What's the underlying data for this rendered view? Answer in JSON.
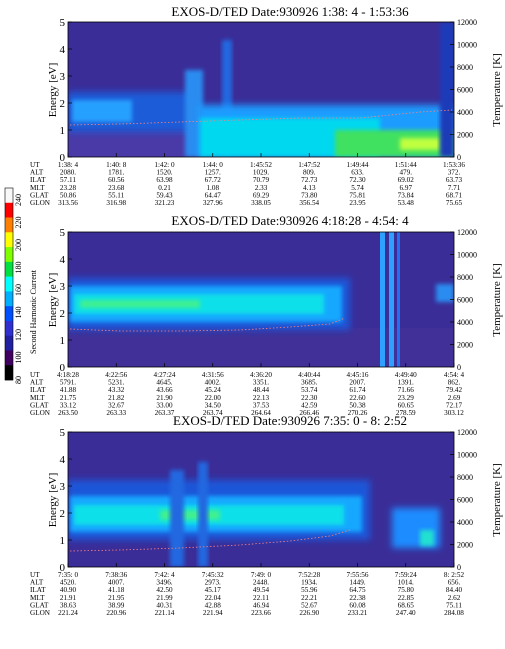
{
  "colorbar": {
    "label": "Second Harmonic Current",
    "ticks": [
      "240",
      "220",
      "200",
      "180",
      "160",
      "140",
      "120",
      "100",
      "80"
    ],
    "colors": [
      "#f8f8f8",
      "#ff0000",
      "#ff8000",
      "#ffff00",
      "#80ff00",
      "#00e040",
      "#00ffff",
      "#00b0ff",
      "#0050ff",
      "#3030d0",
      "#2020a0",
      "#400060",
      "#000000"
    ]
  },
  "chart_data": [
    {
      "type": "heatmap",
      "title": "EXOS-D/TED   Date:930926   1:38: 4 - 1:53:36",
      "ylabel": "Energy [eV]",
      "y2label": "Temperature [K]",
      "ylim": [
        0,
        5
      ],
      "y2lim": [
        0,
        12000
      ],
      "y_ticks": [
        "0",
        "1",
        "2",
        "3",
        "4",
        "5"
      ],
      "y2_ticks": [
        "0",
        "2000",
        "4000",
        "6000",
        "8000",
        "10000",
        "12000"
      ],
      "ephemeris": {
        "labels": [
          "UT",
          "ALT",
          "ILAT",
          "MLT",
          "GLAT",
          "GLON"
        ],
        "columns": [
          [
            "1:38: 4",
            "2080.",
            "57.11",
            "23.28",
            "50.86",
            "313.56"
          ],
          [
            "1:40: 8",
            "1781.",
            "60.56",
            "23.68",
            "55.11",
            "316.98"
          ],
          [
            "1:42: 0",
            "1520.",
            "63.98",
            "0.21",
            "59.43",
            "321.23"
          ],
          [
            "1:44: 0",
            "1257.",
            "67.72",
            "1.08",
            "64.47",
            "327.96"
          ],
          [
            "1:45:52",
            "1029.",
            "70.79",
            "2.33",
            "69.29",
            "338.05"
          ],
          [
            "1:47:52",
            "809.",
            "72.73",
            "4.13",
            "73.80",
            "356.54"
          ],
          [
            "1:49:44",
            "633.",
            "72.30",
            "5.74",
            "75.81",
            "23.95"
          ],
          [
            "1:51:44",
            "479.",
            "69.02",
            "6.97",
            "73.84",
            "53.48"
          ],
          [
            "1:53:36",
            "372.",
            "63.73",
            "7.71",
            "68.71",
            "75.65"
          ]
        ]
      }
    },
    {
      "type": "heatmap",
      "title": "EXOS-D/TED   Date:930926   4:18:28 - 4:54: 4",
      "ylabel": "Energy [eV]",
      "y2label": "Temperature [K]",
      "ylim": [
        0,
        5
      ],
      "y2lim": [
        0,
        12000
      ],
      "y_ticks": [
        "0",
        "1",
        "2",
        "3",
        "4",
        "5"
      ],
      "y2_ticks": [
        "0",
        "2000",
        "4000",
        "6000",
        "8000",
        "10000",
        "12000"
      ],
      "ephemeris": {
        "labels": [
          "UT",
          "ALT",
          "ILAT",
          "MLT",
          "GLAT",
          "GLON"
        ],
        "columns": [
          [
            "4:18:28",
            "5791.",
            "41.88",
            "21.75",
            "33.12",
            "263.50"
          ],
          [
            "4:22:56",
            "5231.",
            "43.32",
            "21.82",
            "32.67",
            "263.33"
          ],
          [
            "4:27:24",
            "4645.",
            "43.66",
            "21.90",
            "33.00",
            "263.37"
          ],
          [
            "4:31:56",
            "4002.",
            "45.24",
            "22.00",
            "34.50",
            "263.74"
          ],
          [
            "4:36:20",
            "3351.",
            "48.44",
            "22.13",
            "37.53",
            "264.64"
          ],
          [
            "4:40:44",
            "3685.",
            "53.74",
            "22.30",
            "42.59",
            "266.46"
          ],
          [
            "4:45:16",
            "2007.",
            "61.74",
            "22.60",
            "50.38",
            "270.26"
          ],
          [
            "4:49:40",
            "1391.",
            "71.66",
            "23.29",
            "60.65",
            "278.59"
          ],
          [
            "4:54: 4",
            "862.",
            "79.42",
            "2.69",
            "72.17",
            "303.12"
          ]
        ]
      }
    },
    {
      "type": "heatmap",
      "title": "EXOS-D/TED   Date:930926   7:35: 0 - 8: 2:52",
      "ylabel": "Energy [eV]",
      "y2label": "Temperature [K]",
      "ylim": [
        0,
        5
      ],
      "y2lim": [
        0,
        12000
      ],
      "y_ticks": [
        "0",
        "1",
        "2",
        "3",
        "4",
        "5"
      ],
      "y2_ticks": [
        "0",
        "2000",
        "4000",
        "6000",
        "8000",
        "10000",
        "12000"
      ],
      "ephemeris": {
        "labels": [
          "UT",
          "ALT",
          "ILAT",
          "MLT",
          "GLAT",
          "GLON"
        ],
        "columns": [
          [
            "7:35: 0",
            "4520.",
            "40.90",
            "21.91",
            "38.63",
            "221.24"
          ],
          [
            "7:38:36",
            "4007.",
            "41.18",
            "21.95",
            "38.99",
            "220.96"
          ],
          [
            "7:42: 4",
            "3496.",
            "42.50",
            "21.99",
            "40.31",
            "221.14"
          ],
          [
            "7:45:32",
            "2973.",
            "45.17",
            "22.04",
            "42.88",
            "221.94"
          ],
          [
            "7:49: 0",
            "2448.",
            "49.54",
            "22.11",
            "46.94",
            "223.66"
          ],
          [
            "7:52:28",
            "1934.",
            "55.96",
            "22.21",
            "52.67",
            "226.90"
          ],
          [
            "7:55:56",
            "1449.",
            "64.75",
            "22.38",
            "60.08",
            "233.21"
          ],
          [
            "7:59:24",
            "1014.",
            "75.80",
            "22.85",
            "68.65",
            "247.40"
          ],
          [
            "8: 2:52",
            "656.",
            "84.40",
            "2.62",
            "75.11",
            "284.08"
          ]
        ]
      }
    }
  ]
}
